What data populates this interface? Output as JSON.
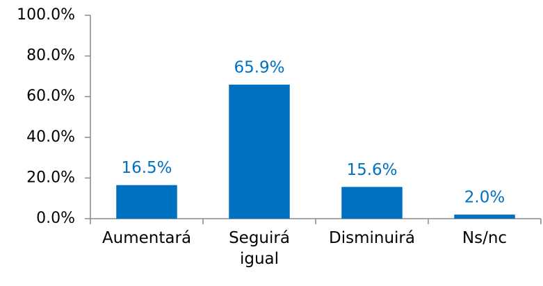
{
  "chart_data": {
    "type": "bar",
    "categories": [
      "Aumentará",
      "Seguirá igual",
      "Disminuirá",
      "Ns/nc"
    ],
    "values": [
      16.5,
      65.9,
      15.6,
      2.0
    ],
    "value_labels": [
      "16.5%",
      "65.9%",
      "15.6%",
      "2.0%"
    ],
    "color": "#0070c0",
    "ylim": [
      0,
      100
    ],
    "yticks": [
      {
        "value": 0,
        "label": "0.0%"
      },
      {
        "value": 20,
        "label": "20.0%"
      },
      {
        "value": 40,
        "label": "40.0%"
      },
      {
        "value": 60,
        "label": "60.0%"
      },
      {
        "value": 80,
        "label": "80.0%"
      },
      {
        "value": 100,
        "label": "100.0%"
      }
    ],
    "grid": false
  }
}
